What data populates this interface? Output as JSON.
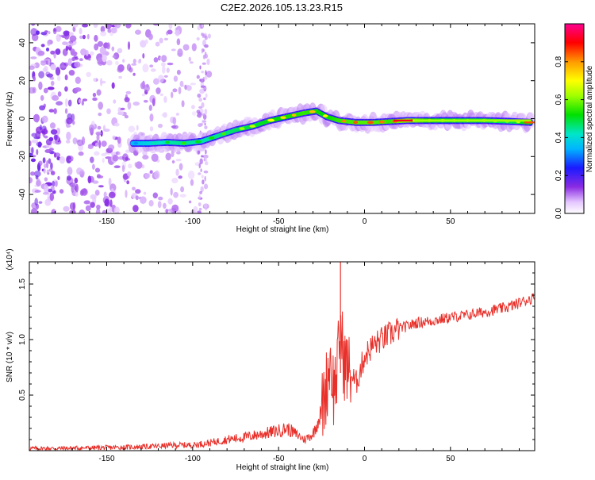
{
  "figure_title": "C2E2.2026.105.13.23.R15",
  "colors": {
    "snr_line": "#e8302a",
    "noise_purple": "#7a1fff",
    "axes": "#000000"
  },
  "chart_data": [
    {
      "type": "heatmap",
      "title": "C2E2.2026.105.13.23.R15",
      "xlabel": "Height of straight line (km)",
      "ylabel": "Frequency (Hz)",
      "xlim": [
        -195,
        99
      ],
      "ylim": [
        -50,
        50
      ],
      "x_tick_labels": [
        "-150",
        "-100",
        "-50",
        "0",
        "50"
      ],
      "x_ticks": [
        -150,
        -100,
        -50,
        0,
        50
      ],
      "y_tick_labels": [
        "-40",
        "-20",
        "0",
        "20",
        "40"
      ],
      "y_ticks": [
        -40,
        -20,
        0,
        20,
        40
      ],
      "grid": false,
      "colorbar": {
        "label": "Normalized spectral amplitude",
        "range": [
          0,
          1
        ],
        "tick_labels": [
          "0.0",
          "0.2",
          "0.4",
          "0.6",
          "0.8"
        ],
        "ticks": [
          0.0,
          0.2,
          0.4,
          0.6,
          0.8
        ],
        "colormap": "rainbow (white-purple-blue-cyan-green-yellow-orange-red-magenta)"
      },
      "ridge": {
        "description": "Frequency track of peak spectral amplitude vs height",
        "x": [
          -135,
          -125,
          -115,
          -105,
          -95,
          -85,
          -75,
          -65,
          -55,
          -45,
          -35,
          -28,
          -22,
          -15,
          -5,
          5,
          15,
          25,
          40,
          55,
          70,
          85,
          97
        ],
        "y": [
          -13,
          -13,
          -12.5,
          -13,
          -12,
          -9,
          -6,
          -4,
          -1,
          1,
          3,
          4,
          1,
          -1,
          -2,
          -2,
          -1.5,
          -1,
          -1,
          -1,
          -1,
          -1.5,
          -2
        ],
        "amplitude": [
          0.3,
          0.4,
          0.5,
          0.55,
          0.5,
          0.55,
          0.6,
          0.65,
          0.7,
          0.75,
          0.8,
          0.75,
          0.7,
          0.8,
          0.85,
          0.85,
          0.8,
          0.95,
          0.7,
          0.65,
          0.65,
          0.6,
          0.75
        ]
      },
      "noise_region": {
        "description": "Scattered low-amplitude purple noise across all frequencies",
        "x_range": [
          -195,
          -90
        ],
        "amplitude": 0.1
      }
    },
    {
      "type": "line",
      "xlabel": "Height of straight line (km)",
      "ylabel": "SNR (10 * v/v)",
      "y_multiplier": "(x10⁴)",
      "xlim": [
        -195,
        99
      ],
      "ylim": [
        0,
        1.7
      ],
      "x_tick_labels": [
        "-150",
        "-100",
        "-50",
        "0",
        "50"
      ],
      "x_ticks": [
        -150,
        -100,
        -50,
        0,
        50
      ],
      "y_tick_labels": [
        "0.5",
        "1.0",
        "1.5"
      ],
      "y_ticks": [
        0.5,
        1.0,
        1.5
      ],
      "grid": false,
      "series": [
        {
          "color": "#e8302a",
          "x": [
            -195,
            -180,
            -160,
            -140,
            -120,
            -110,
            -100,
            -90,
            -80,
            -70,
            -60,
            -50,
            -45,
            -40,
            -35,
            -30,
            -25,
            -22,
            -20,
            -18,
            -16,
            -14,
            -12,
            -10,
            -5,
            0,
            5,
            10,
            15,
            20,
            25,
            30,
            40,
            50,
            60,
            70,
            80,
            85,
            90,
            95,
            99
          ],
          "y": [
            0.02,
            0.02,
            0.025,
            0.03,
            0.04,
            0.05,
            0.05,
            0.07,
            0.1,
            0.12,
            0.15,
            0.18,
            0.2,
            0.15,
            0.1,
            0.15,
            0.35,
            0.6,
            0.85,
            0.55,
            0.7,
            1.1,
            0.8,
            0.75,
            0.6,
            0.85,
            0.95,
            1.0,
            1.05,
            1.1,
            1.12,
            1.15,
            1.17,
            1.2,
            1.22,
            1.25,
            1.28,
            1.3,
            1.33,
            1.36,
            1.38
          ]
        }
      ],
      "spikes": [
        {
          "x": -14,
          "y": 1.7
        }
      ]
    }
  ]
}
